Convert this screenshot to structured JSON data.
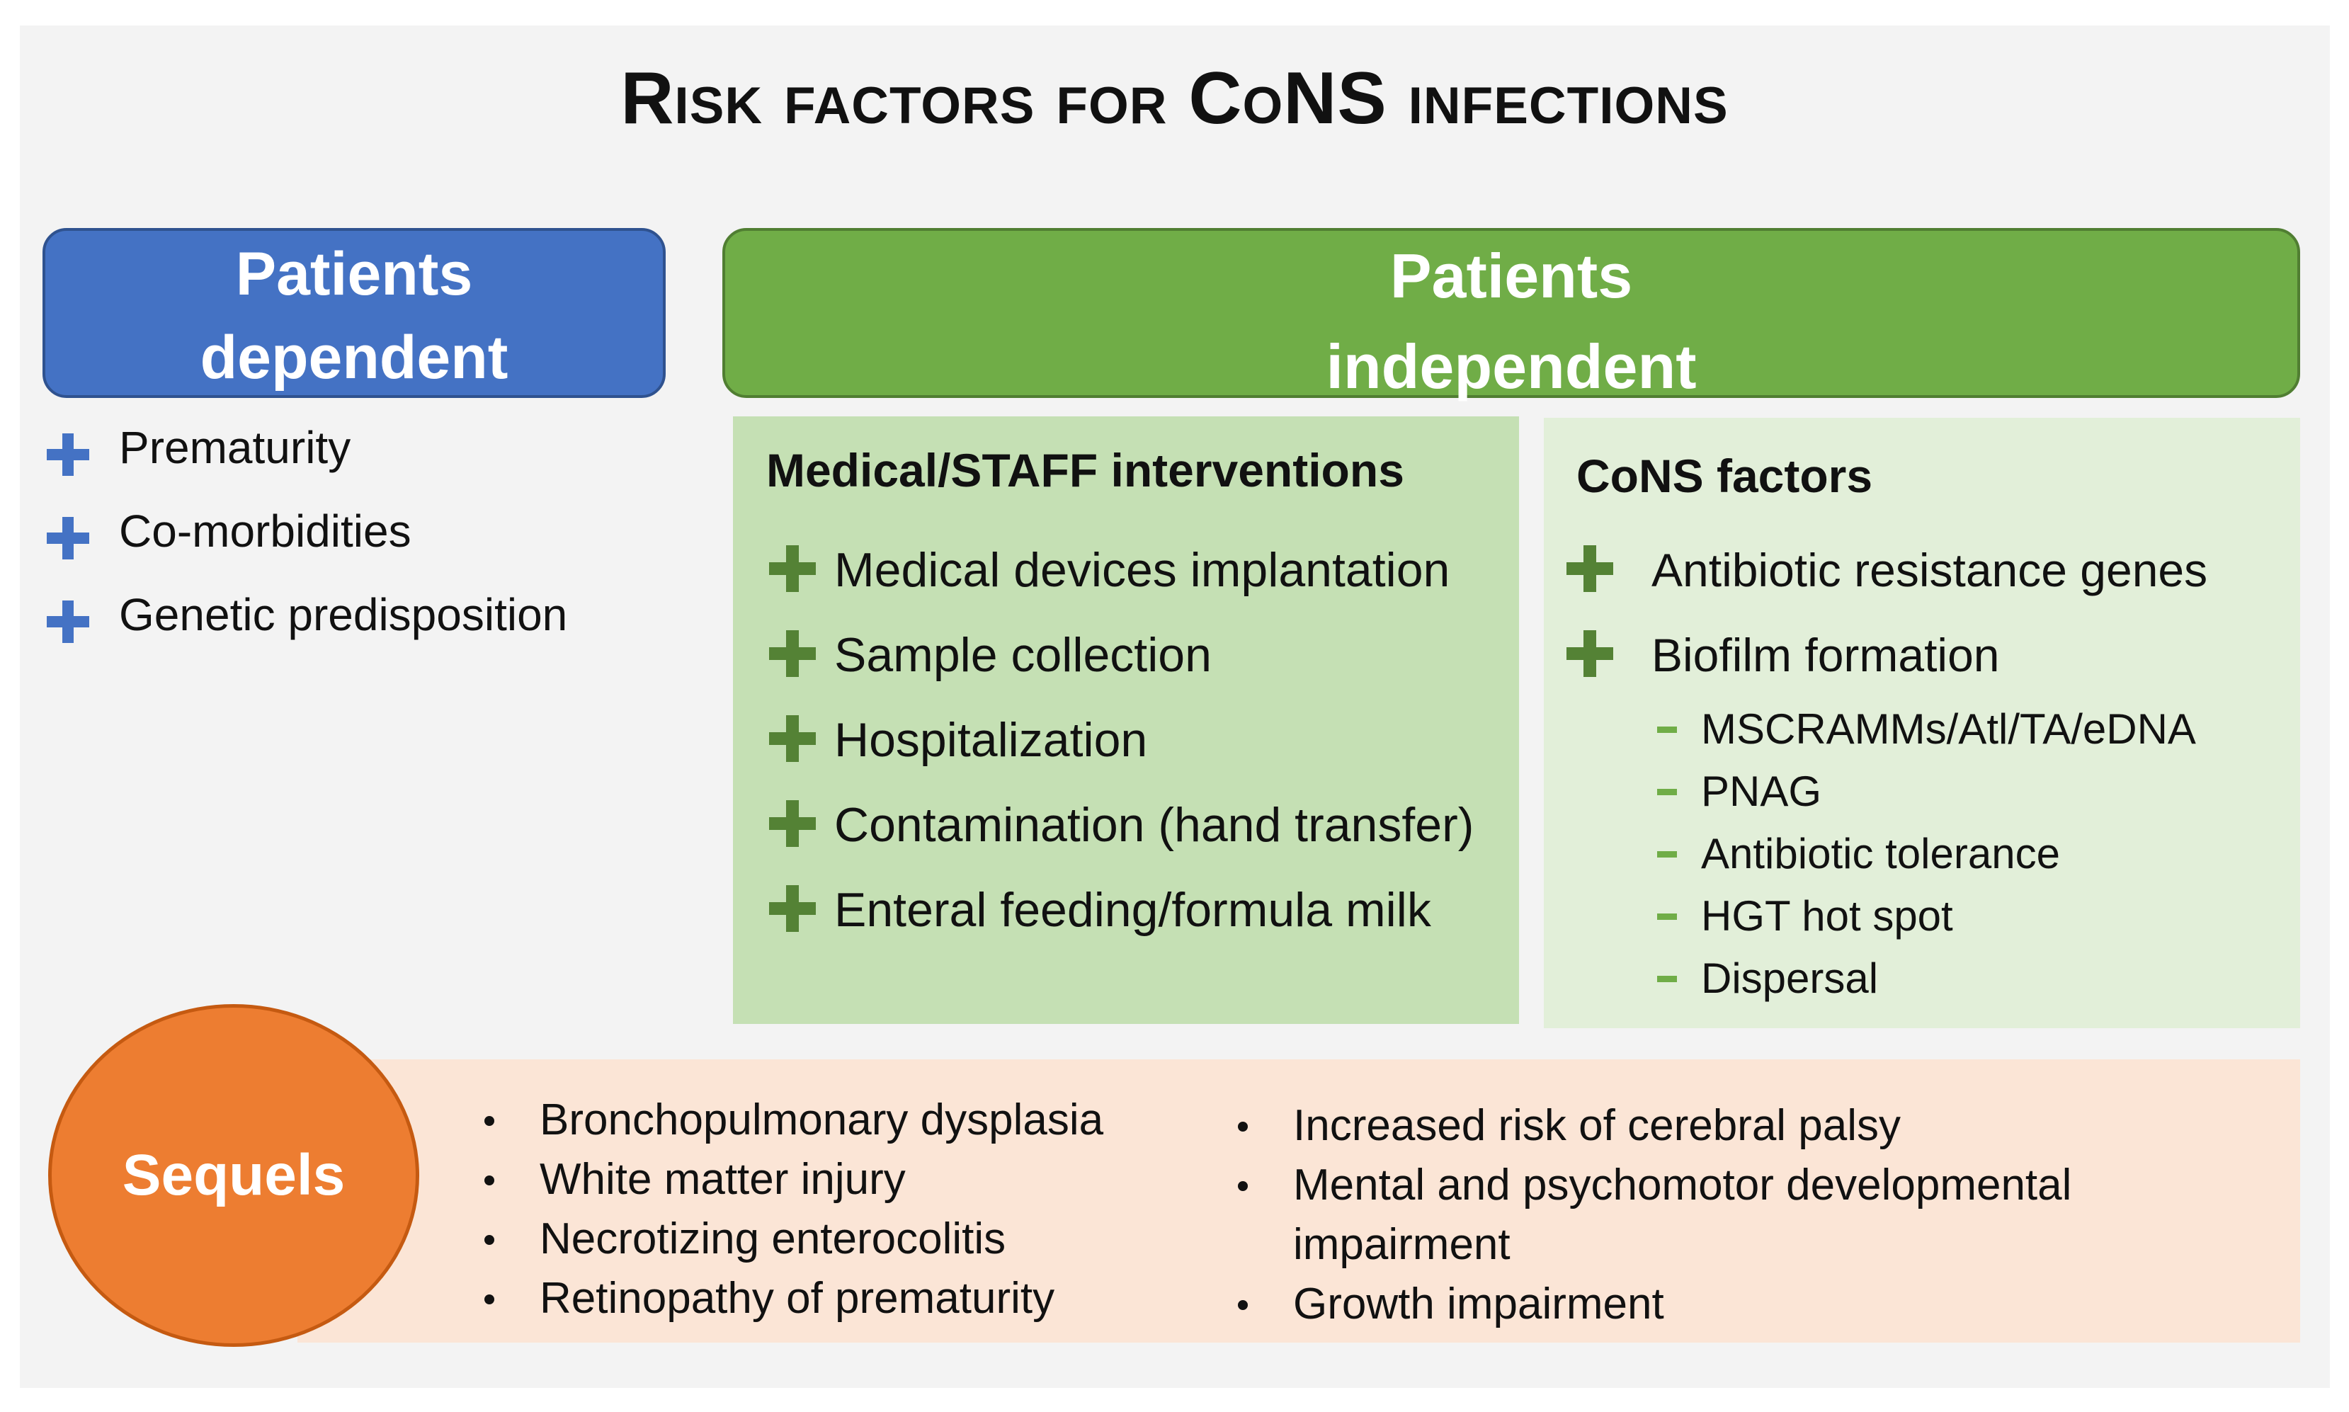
{
  "title": "Risk factors for CoNS infections",
  "patients_dependent": {
    "header_line1": "Patients",
    "header_line2": "dependent",
    "items": [
      "Prematurity",
      "Co-morbidities",
      "Genetic predisposition"
    ]
  },
  "patients_independent": {
    "header_line1": "Patients",
    "header_line2": "independent",
    "medical": {
      "title": "Medical/STAFF interventions",
      "items": [
        "Medical devices implantation",
        "Sample collection",
        "Hospitalization",
        "Contamination (hand transfer)",
        "Enteral feeding/formula milk"
      ]
    },
    "cons": {
      "title": "CoNS factors",
      "items": [
        "Antibiotic resistance genes",
        "Biofilm formation"
      ],
      "biofilm_subitems": [
        "MSCRAMMs/Atl/TA/eDNA",
        "PNAG",
        "Antibiotic tolerance",
        "HGT hot spot",
        "Dispersal"
      ]
    }
  },
  "sequels": {
    "label": "Sequels",
    "left_items": [
      "Bronchopulmonary dysplasia",
      "White matter injury",
      "Necrotizing enterocolitis",
      "Retinopathy of prematurity"
    ],
    "right_items": [
      "Increased risk of cerebral palsy",
      "Mental and psychomotor developmental impairment",
      "Growth impairment"
    ]
  },
  "colors": {
    "background": "#f3f3f3",
    "dependent_header": "#4472c4",
    "independent_header": "#70ad47",
    "medical_box": "#c5e0b4",
    "cons_box": "#e2efd9",
    "plus_green": "#548235",
    "sequel_circle": "#ed7d31",
    "sequel_bar": "#fbe5d6"
  }
}
